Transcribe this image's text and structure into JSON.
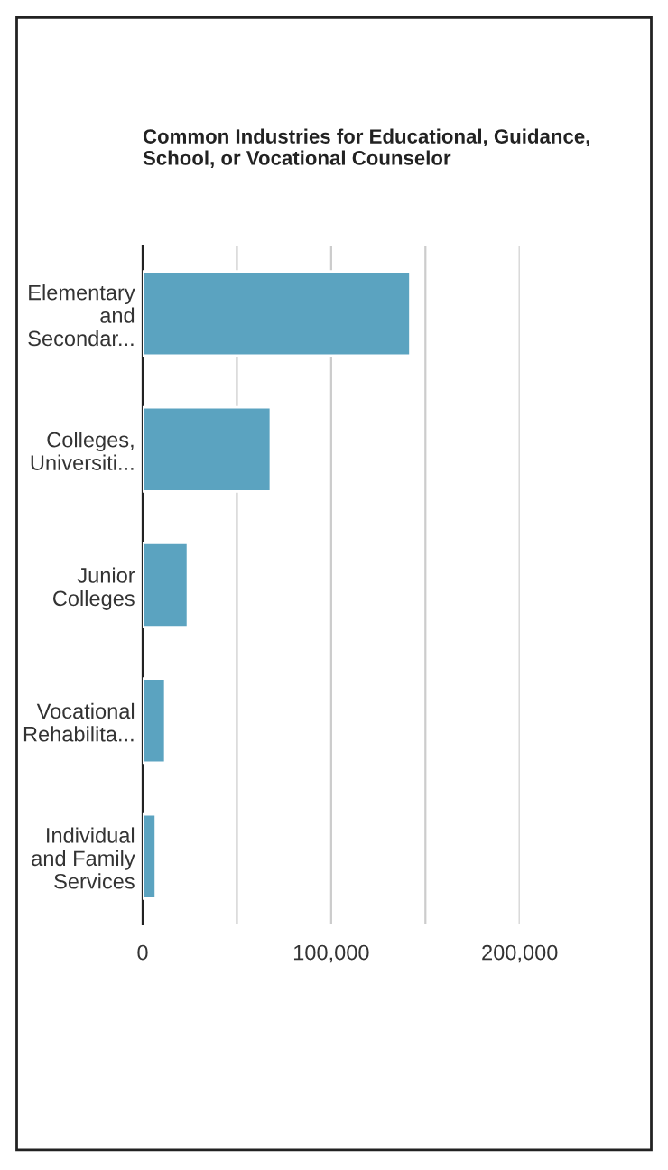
{
  "chart_data": {
    "type": "bar",
    "orientation": "horizontal",
    "title": "Common Industries for Educational, Guidance, School, or Vocational Counselor",
    "categories": [
      "Elementary\nand\nSecondar...",
      "Colleges,\nUniversiti...",
      "Junior\nColleges",
      "Vocational\nRehabilita...",
      "Individual\nand Family\nServices"
    ],
    "values": [
      142000,
      68000,
      24000,
      12000,
      7000
    ],
    "color": "#5ba3c0",
    "xlim": [
      0,
      200000
    ],
    "xticks": [
      0,
      {
        "value": 50000,
        "label": null
      },
      {
        "value": 100000,
        "label": "100,000"
      },
      {
        "value": 150000,
        "label": null
      },
      {
        "value": 200000,
        "label": "200,000"
      }
    ],
    "grid": "x",
    "legend": false
  }
}
